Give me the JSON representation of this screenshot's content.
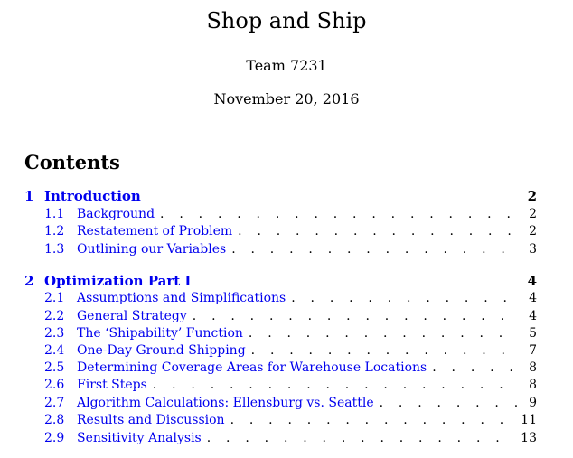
{
  "document": {
    "title": "Shop and Ship",
    "author": "Team 7231",
    "date": "November 20, 2016"
  },
  "contents": {
    "heading": "Contents",
    "sections": [
      {
        "number": "1",
        "title": "Introduction",
        "page": "2",
        "subsections": [
          {
            "number": "1.1",
            "title": "Background",
            "page": "2"
          },
          {
            "number": "1.2",
            "title": "Restatement of Problem",
            "page": "2"
          },
          {
            "number": "1.3",
            "title": "Outlining our Variables",
            "page": "3"
          }
        ]
      },
      {
        "number": "2",
        "title": "Optimization Part I",
        "page": "4",
        "subsections": [
          {
            "number": "2.1",
            "title": "Assumptions and Simplifications",
            "page": "4"
          },
          {
            "number": "2.2",
            "title": "General Strategy",
            "page": "4"
          },
          {
            "number": "2.3",
            "title": "The ‘Shipability’ Function",
            "page": "5"
          },
          {
            "number": "2.4",
            "title": "One-Day Ground Shipping",
            "page": "7"
          },
          {
            "number": "2.5",
            "title": "Determining Coverage Areas for Warehouse Locations",
            "page": "8"
          },
          {
            "number": "2.6",
            "title": "First Steps",
            "page": "8"
          },
          {
            "number": "2.7",
            "title": "Algorithm Calculations: Ellensburg vs. Seattle",
            "page": "9"
          },
          {
            "number": "2.8",
            "title": "Results and Discussion",
            "page": "11"
          },
          {
            "number": "2.9",
            "title": "Sensitivity Analysis",
            "page": "13"
          }
        ]
      }
    ]
  }
}
